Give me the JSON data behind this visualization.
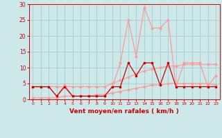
{
  "xlabel": "Vent moyen/en rafales ( km/h )",
  "x": [
    0,
    1,
    2,
    3,
    4,
    5,
    6,
    7,
    8,
    9,
    10,
    11,
    12,
    13,
    14,
    15,
    16,
    17,
    18,
    19,
    20,
    21,
    22,
    23
  ],
  "line_dark1": [
    4.0,
    4.0,
    4.0,
    1.0,
    4.0,
    1.0,
    1.0,
    1.0,
    1.0,
    1.0,
    4.0,
    4.0,
    11.5,
    7.5,
    11.5,
    11.5,
    4.5,
    11.5,
    4.0,
    4.0,
    4.0,
    4.0,
    4.0,
    4.0
  ],
  "line_light_upper": [
    4.0,
    4.0,
    4.0,
    1.0,
    4.5,
    1.0,
    1.0,
    1.0,
    1.0,
    1.0,
    4.0,
    11.5,
    25.0,
    13.5,
    29.0,
    22.5,
    22.5,
    25.0,
    4.0,
    11.5,
    11.5,
    11.5,
    4.0,
    7.5
  ],
  "line_light_trend_upper": [
    4.0,
    4.0,
    4.0,
    4.0,
    4.0,
    4.0,
    4.0,
    4.0,
    4.0,
    4.0,
    5.0,
    6.0,
    7.0,
    8.0,
    9.0,
    9.5,
    10.0,
    10.5,
    10.5,
    11.0,
    11.0,
    11.0,
    11.0,
    11.0
  ],
  "line_light_trend_lower": [
    0.5,
    0.5,
    0.5,
    0.5,
    1.0,
    1.0,
    1.0,
    1.0,
    1.5,
    1.5,
    2.0,
    2.5,
    3.0,
    3.5,
    4.0,
    4.5,
    4.5,
    5.0,
    5.0,
    5.0,
    5.0,
    5.0,
    5.0,
    4.5
  ],
  "ylim": [
    0,
    30
  ],
  "xlim": [
    -0.5,
    23.5
  ],
  "yticks": [
    0,
    5,
    10,
    15,
    20,
    25,
    30
  ],
  "xticks": [
    0,
    1,
    2,
    3,
    4,
    5,
    6,
    7,
    8,
    9,
    10,
    11,
    12,
    13,
    14,
    15,
    16,
    17,
    18,
    19,
    20,
    21,
    22,
    23
  ],
  "color_dark": "#cc0000",
  "color_light": "#ff9999",
  "bg_color": "#cce8e8",
  "grid_color": "#aacccc",
  "tick_color": "#cc0000",
  "label_color": "#cc0000",
  "spine_color": "#cc0000"
}
